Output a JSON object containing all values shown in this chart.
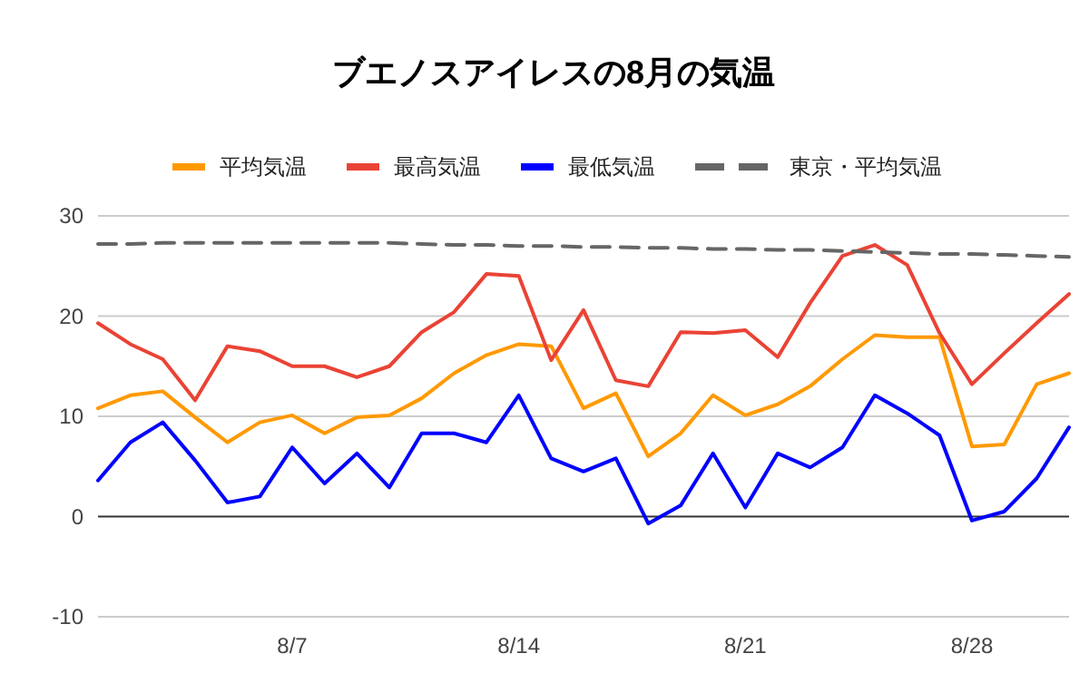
{
  "chart_data": {
    "type": "line",
    "title": "ブエノスアイレスの8月の気温",
    "categories": [
      null,
      null,
      null,
      null,
      null,
      null,
      "8/7",
      null,
      null,
      null,
      null,
      null,
      null,
      "8/14",
      null,
      null,
      null,
      null,
      null,
      null,
      "8/21",
      null,
      null,
      null,
      null,
      null,
      null,
      "8/28",
      null,
      null,
      null
    ],
    "series": [
      {
        "name": "平均気温",
        "color": "#ff9900",
        "values": [
          10.8,
          12.1,
          12.5,
          9.9,
          7.4,
          9.4,
          10.1,
          8.3,
          9.9,
          10.1,
          11.8,
          14.3,
          16.1,
          17.2,
          17.0,
          10.8,
          12.3,
          6.0,
          8.3,
          12.1,
          10.1,
          11.2,
          13.0,
          15.7,
          18.1,
          17.9,
          17.9,
          7.0,
          7.2,
          13.2,
          14.3
        ]
      },
      {
        "name": "最高気温",
        "color": "#ea4335",
        "values": [
          19.3,
          17.2,
          15.7,
          11.6,
          17.0,
          16.5,
          15.0,
          15.0,
          13.9,
          15.0,
          18.4,
          20.4,
          24.2,
          24.0,
          15.6,
          20.6,
          13.6,
          13.0,
          18.4,
          18.3,
          18.6,
          15.9,
          21.3,
          26.0,
          27.1,
          25.1,
          18.3,
          13.2,
          16.3,
          19.3,
          22.2
        ]
      },
      {
        "name": "最低気温",
        "color": "#0000ff",
        "values": [
          3.6,
          7.4,
          9.4,
          5.6,
          1.4,
          2.0,
          6.9,
          3.3,
          6.3,
          2.9,
          8.3,
          8.3,
          7.4,
          12.1,
          5.8,
          4.5,
          5.8,
          -0.7,
          1.1,
          6.3,
          0.9,
          6.3,
          4.9,
          6.9,
          12.1,
          10.3,
          8.1,
          -0.4,
          0.5,
          3.8,
          8.9
        ]
      },
      {
        "name": "東京・平均気温",
        "color": "#666666",
        "line_style": "dashed",
        "values": [
          27.2,
          27.2,
          27.3,
          27.3,
          27.3,
          27.3,
          27.3,
          27.3,
          27.3,
          27.3,
          27.2,
          27.1,
          27.1,
          27.0,
          27.0,
          26.9,
          26.9,
          26.8,
          26.8,
          26.7,
          26.7,
          26.6,
          26.6,
          26.5,
          26.4,
          26.3,
          26.2,
          26.2,
          26.1,
          26.0,
          25.9
        ]
      }
    ],
    "ylim": [
      -10,
      30
    ],
    "yticks": [
      -10,
      0,
      10,
      20,
      30
    ],
    "grid": "y",
    "legend": "top",
    "line_style": "solid"
  }
}
